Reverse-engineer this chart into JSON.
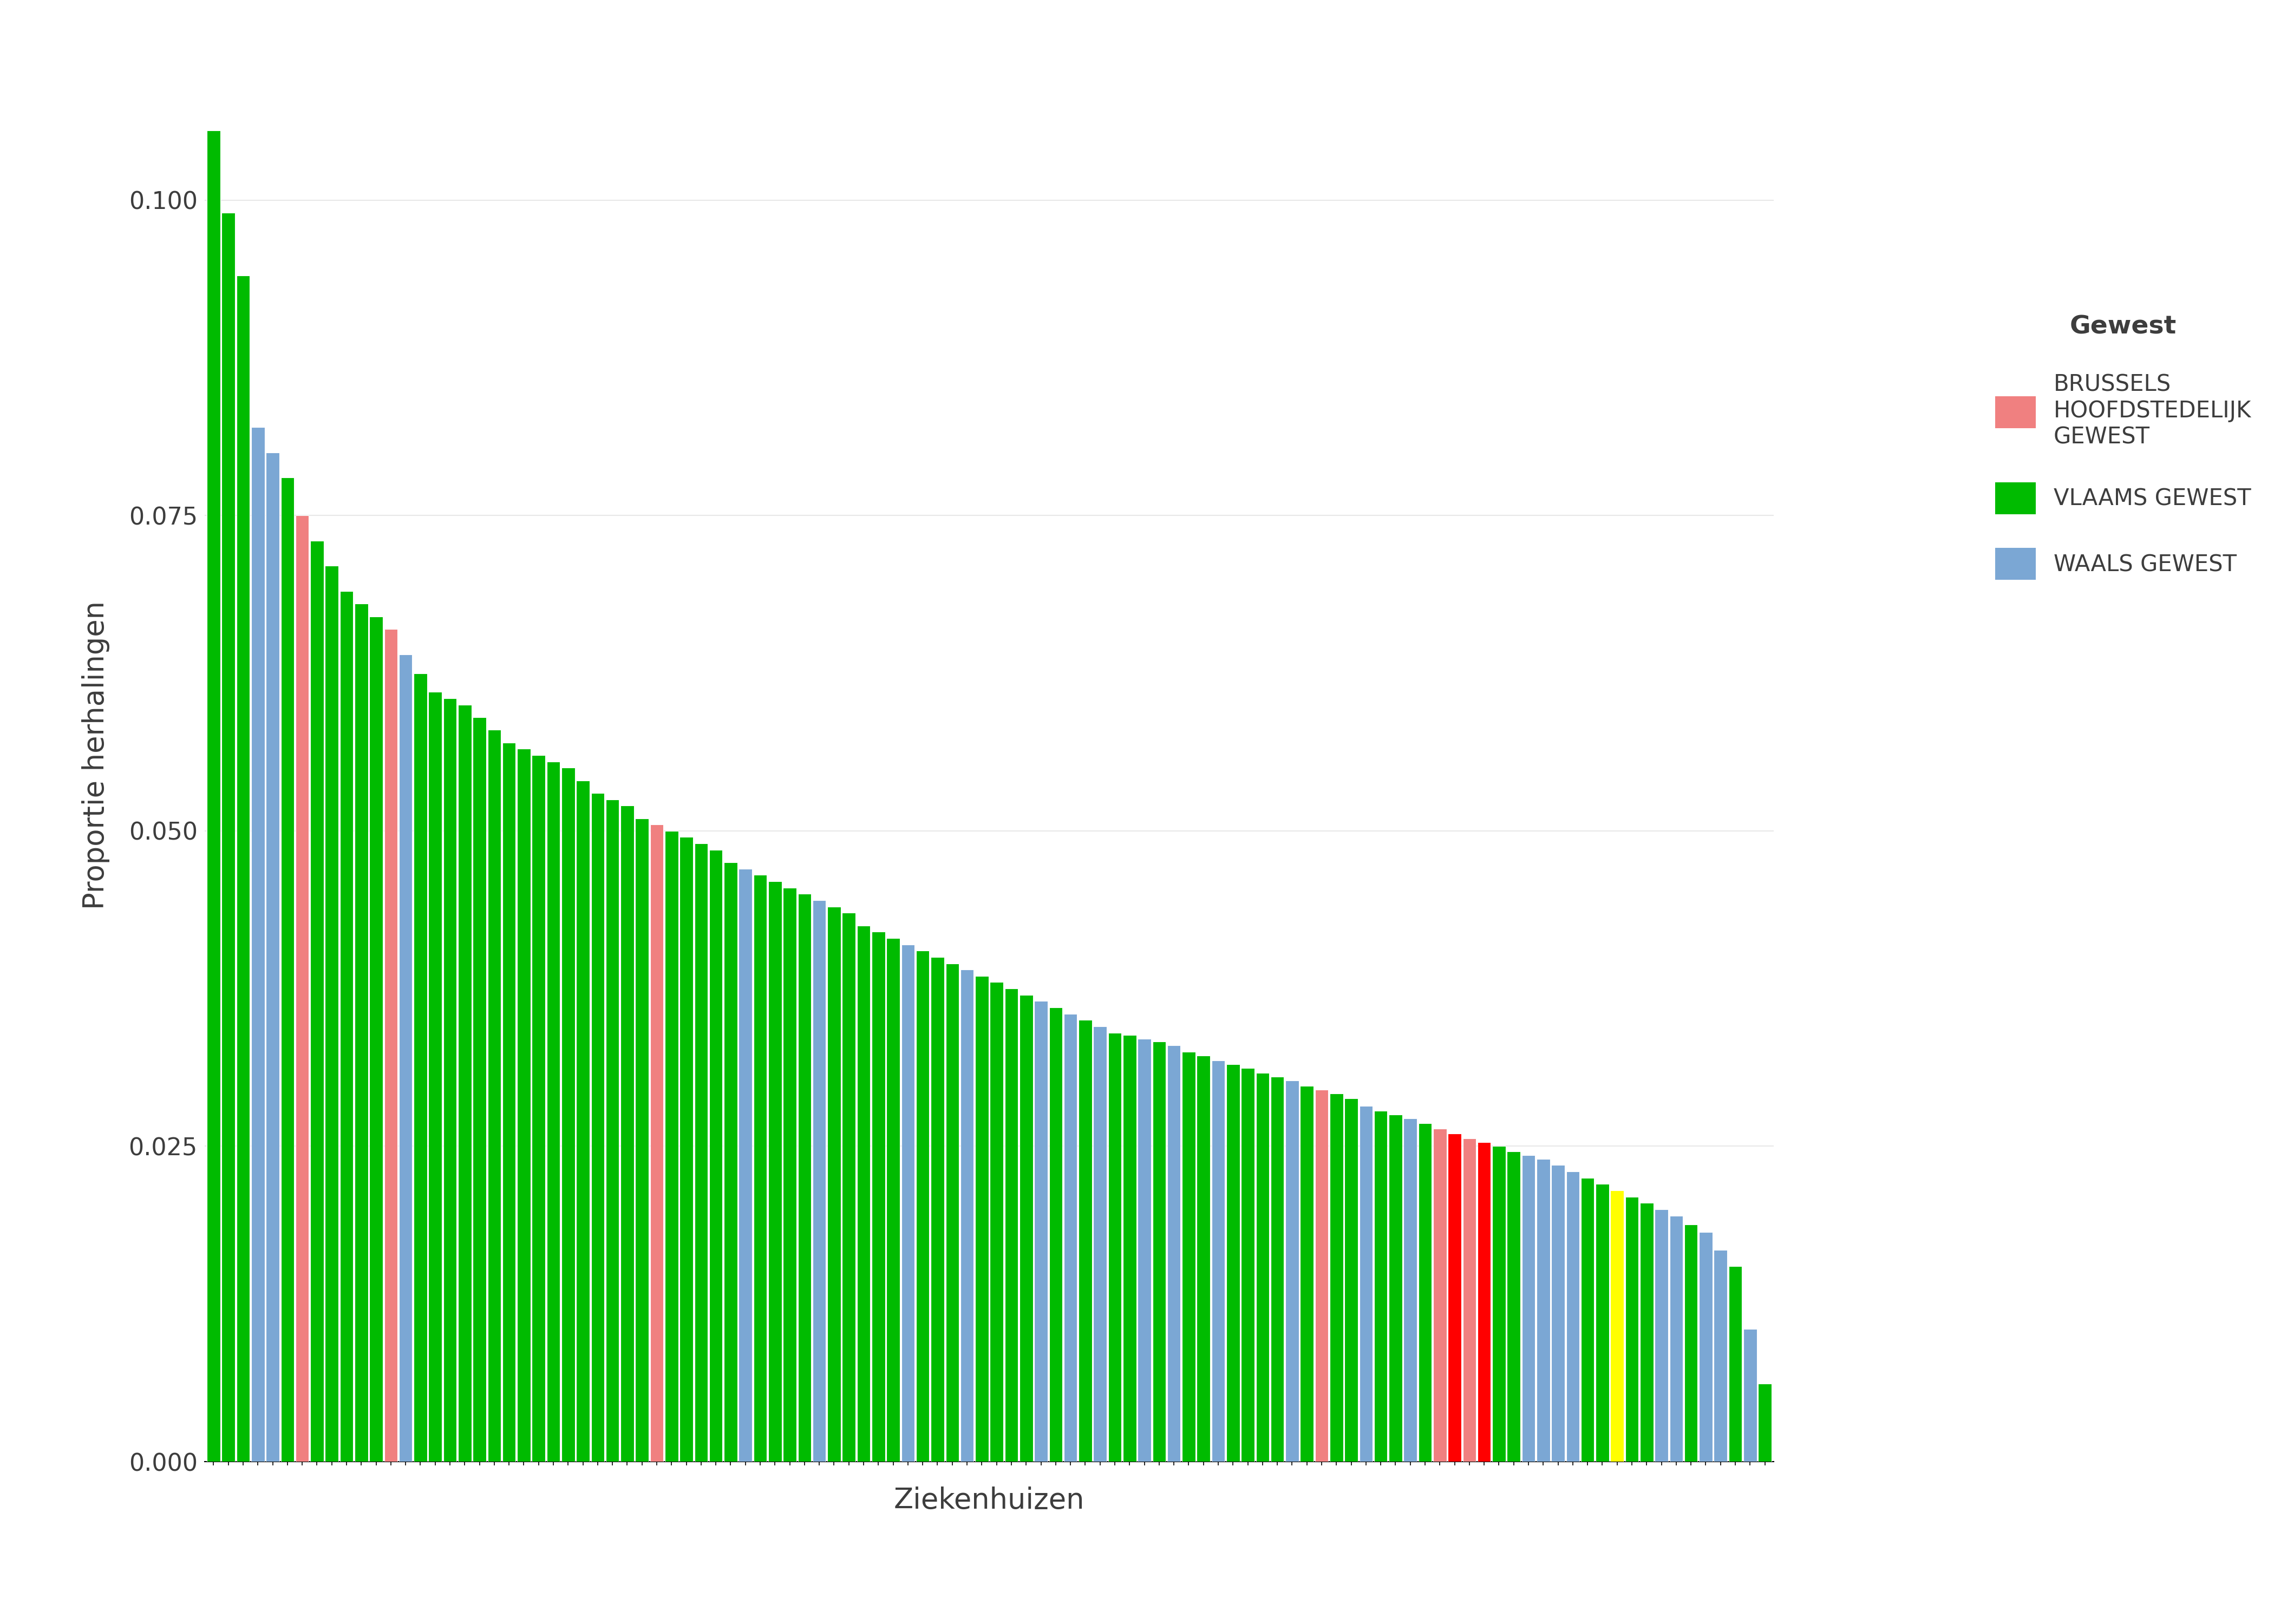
{
  "title": "",
  "xlabel": "Ziekenhuizen",
  "ylabel": "Proportie herhalingen",
  "ylim": [
    0,
    0.112
  ],
  "yticks": [
    0.0,
    0.025,
    0.05,
    0.075,
    0.1
  ],
  "background_color": "#FFFFFF",
  "panel_background": "#FFFFFF",
  "grid_color": "#E8E8E8",
  "bar_colors": {
    "BRUSSELS": "#F08080",
    "VLAAMS": "#00BB00",
    "WAALS": "#7BA7D4",
    "YELLOW": "#FFFF00",
    "RED": "#FF0000"
  },
  "legend_title": "Gewest",
  "legend_labels": [
    "BRUSSELS\nHOOFDSTEDELIJK\nGEWEST",
    "VLAAMS GEWEST",
    "WAALS GEWEST"
  ],
  "legend_colors": [
    "#F08080",
    "#00BB00",
    "#7BA7D4"
  ],
  "bars": [
    {
      "value": 0.1055,
      "color": "VLAAMS"
    },
    {
      "value": 0.099,
      "color": "VLAAMS"
    },
    {
      "value": 0.094,
      "color": "VLAAMS"
    },
    {
      "value": 0.082,
      "color": "WAALS"
    },
    {
      "value": 0.08,
      "color": "WAALS"
    },
    {
      "value": 0.078,
      "color": "VLAAMS"
    },
    {
      "value": 0.075,
      "color": "BRUSSELS"
    },
    {
      "value": 0.073,
      "color": "VLAAMS"
    },
    {
      "value": 0.071,
      "color": "VLAAMS"
    },
    {
      "value": 0.069,
      "color": "VLAAMS"
    },
    {
      "value": 0.068,
      "color": "VLAAMS"
    },
    {
      "value": 0.067,
      "color": "VLAAMS"
    },
    {
      "value": 0.066,
      "color": "BRUSSELS"
    },
    {
      "value": 0.064,
      "color": "WAALS"
    },
    {
      "value": 0.0625,
      "color": "VLAAMS"
    },
    {
      "value": 0.061,
      "color": "VLAAMS"
    },
    {
      "value": 0.0605,
      "color": "VLAAMS"
    },
    {
      "value": 0.06,
      "color": "VLAAMS"
    },
    {
      "value": 0.059,
      "color": "VLAAMS"
    },
    {
      "value": 0.058,
      "color": "VLAAMS"
    },
    {
      "value": 0.057,
      "color": "VLAAMS"
    },
    {
      "value": 0.0565,
      "color": "VLAAMS"
    },
    {
      "value": 0.056,
      "color": "VLAAMS"
    },
    {
      "value": 0.0555,
      "color": "VLAAMS"
    },
    {
      "value": 0.055,
      "color": "VLAAMS"
    },
    {
      "value": 0.054,
      "color": "VLAAMS"
    },
    {
      "value": 0.053,
      "color": "VLAAMS"
    },
    {
      "value": 0.0525,
      "color": "VLAAMS"
    },
    {
      "value": 0.052,
      "color": "VLAAMS"
    },
    {
      "value": 0.051,
      "color": "VLAAMS"
    },
    {
      "value": 0.0505,
      "color": "BRUSSELS"
    },
    {
      "value": 0.05,
      "color": "VLAAMS"
    },
    {
      "value": 0.0495,
      "color": "VLAAMS"
    },
    {
      "value": 0.049,
      "color": "VLAAMS"
    },
    {
      "value": 0.0485,
      "color": "VLAAMS"
    },
    {
      "value": 0.0475,
      "color": "VLAAMS"
    },
    {
      "value": 0.047,
      "color": "WAALS"
    },
    {
      "value": 0.0465,
      "color": "VLAAMS"
    },
    {
      "value": 0.046,
      "color": "VLAAMS"
    },
    {
      "value": 0.0455,
      "color": "VLAAMS"
    },
    {
      "value": 0.045,
      "color": "VLAAMS"
    },
    {
      "value": 0.0445,
      "color": "WAALS"
    },
    {
      "value": 0.044,
      "color": "VLAAMS"
    },
    {
      "value": 0.0435,
      "color": "VLAAMS"
    },
    {
      "value": 0.0425,
      "color": "VLAAMS"
    },
    {
      "value": 0.042,
      "color": "VLAAMS"
    },
    {
      "value": 0.0415,
      "color": "VLAAMS"
    },
    {
      "value": 0.041,
      "color": "WAALS"
    },
    {
      "value": 0.0405,
      "color": "VLAAMS"
    },
    {
      "value": 0.04,
      "color": "VLAAMS"
    },
    {
      "value": 0.0395,
      "color": "VLAAMS"
    },
    {
      "value": 0.039,
      "color": "WAALS"
    },
    {
      "value": 0.0385,
      "color": "VLAAMS"
    },
    {
      "value": 0.038,
      "color": "VLAAMS"
    },
    {
      "value": 0.0375,
      "color": "VLAAMS"
    },
    {
      "value": 0.037,
      "color": "VLAAMS"
    },
    {
      "value": 0.0365,
      "color": "WAALS"
    },
    {
      "value": 0.036,
      "color": "VLAAMS"
    },
    {
      "value": 0.0355,
      "color": "WAALS"
    },
    {
      "value": 0.035,
      "color": "VLAAMS"
    },
    {
      "value": 0.0345,
      "color": "WAALS"
    },
    {
      "value": 0.034,
      "color": "VLAAMS"
    },
    {
      "value": 0.0338,
      "color": "VLAAMS"
    },
    {
      "value": 0.0335,
      "color": "WAALS"
    },
    {
      "value": 0.0333,
      "color": "VLAAMS"
    },
    {
      "value": 0.033,
      "color": "WAALS"
    },
    {
      "value": 0.0325,
      "color": "VLAAMS"
    },
    {
      "value": 0.0322,
      "color": "VLAAMS"
    },
    {
      "value": 0.0318,
      "color": "WAALS"
    },
    {
      "value": 0.0315,
      "color": "VLAAMS"
    },
    {
      "value": 0.0312,
      "color": "VLAAMS"
    },
    {
      "value": 0.0308,
      "color": "VLAAMS"
    },
    {
      "value": 0.0305,
      "color": "VLAAMS"
    },
    {
      "value": 0.0302,
      "color": "WAALS"
    },
    {
      "value": 0.0298,
      "color": "VLAAMS"
    },
    {
      "value": 0.0295,
      "color": "BRUSSELS"
    },
    {
      "value": 0.0292,
      "color": "VLAAMS"
    },
    {
      "value": 0.0288,
      "color": "VLAAMS"
    },
    {
      "value": 0.0282,
      "color": "WAALS"
    },
    {
      "value": 0.0278,
      "color": "VLAAMS"
    },
    {
      "value": 0.0275,
      "color": "VLAAMS"
    },
    {
      "value": 0.0272,
      "color": "WAALS"
    },
    {
      "value": 0.0268,
      "color": "VLAAMS"
    },
    {
      "value": 0.0264,
      "color": "BRUSSELS"
    },
    {
      "value": 0.026,
      "color": "RED"
    },
    {
      "value": 0.0256,
      "color": "BRUSSELS"
    },
    {
      "value": 0.0253,
      "color": "RED"
    },
    {
      "value": 0.025,
      "color": "VLAAMS"
    },
    {
      "value": 0.0246,
      "color": "VLAAMS"
    },
    {
      "value": 0.0243,
      "color": "WAALS"
    },
    {
      "value": 0.024,
      "color": "WAALS"
    },
    {
      "value": 0.0235,
      "color": "WAALS"
    },
    {
      "value": 0.023,
      "color": "WAALS"
    },
    {
      "value": 0.0225,
      "color": "VLAAMS"
    },
    {
      "value": 0.022,
      "color": "VLAAMS"
    },
    {
      "value": 0.0215,
      "color": "YELLOW"
    },
    {
      "value": 0.021,
      "color": "VLAAMS"
    },
    {
      "value": 0.0205,
      "color": "VLAAMS"
    },
    {
      "value": 0.02,
      "color": "WAALS"
    },
    {
      "value": 0.0195,
      "color": "WAALS"
    },
    {
      "value": 0.0188,
      "color": "VLAAMS"
    },
    {
      "value": 0.0182,
      "color": "WAALS"
    },
    {
      "value": 0.0168,
      "color": "WAALS"
    },
    {
      "value": 0.0155,
      "color": "VLAAMS"
    },
    {
      "value": 0.0105,
      "color": "WAALS"
    },
    {
      "value": 0.0062,
      "color": "VLAAMS"
    }
  ]
}
